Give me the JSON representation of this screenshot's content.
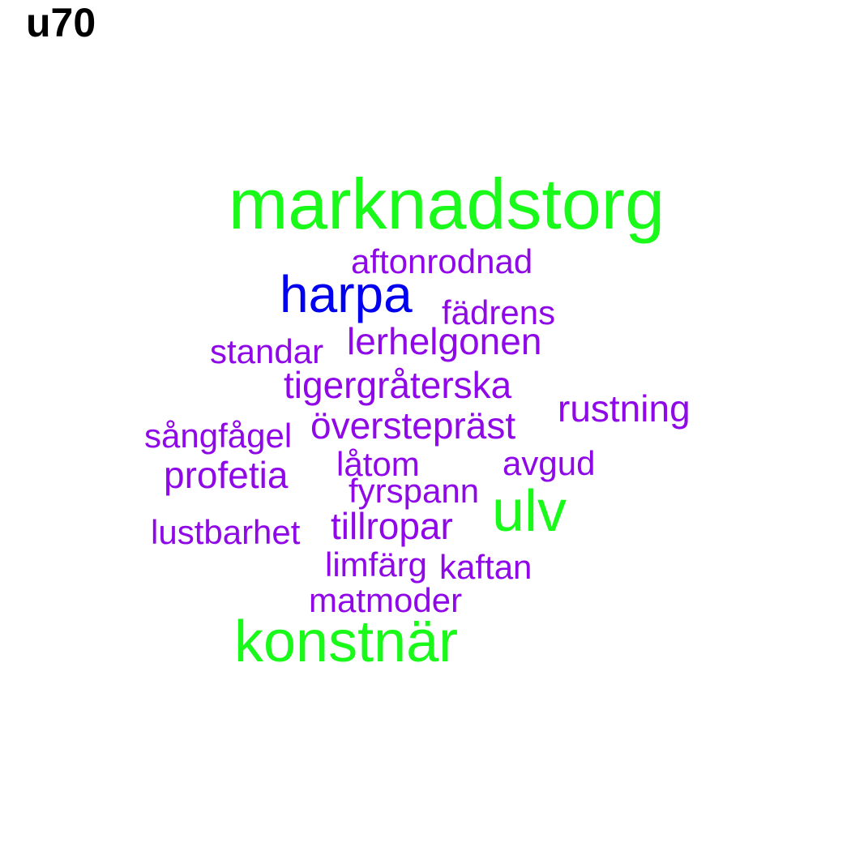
{
  "title": "u70",
  "words": {
    "marknadstorg": "marknadstorg",
    "aftonrodnad": "aftonrodnad",
    "harpa": "harpa",
    "fadrens": "fädrens",
    "standar": "standar",
    "lerhelgonen": "lerhelgonen",
    "tigergraterska": "tigergråterska",
    "rustning": "rustning",
    "overstepras": "överstepräst",
    "sangfagel": "sångfågel",
    "latom": "låtom",
    "avgud": "avgud",
    "profetia": "profetia",
    "fyrspann": "fyrspann",
    "ulv": "ulv",
    "lustbarhet": "lustbarhet",
    "tillropar": "tillropar",
    "limfarg": "limfärg",
    "kaftan": "kaftan",
    "matmoder": "matmoder",
    "konstnar": "konstnär"
  },
  "colors": {
    "green": "#1afa1a",
    "blue": "#0000ee",
    "purple": "#8f08e8"
  }
}
